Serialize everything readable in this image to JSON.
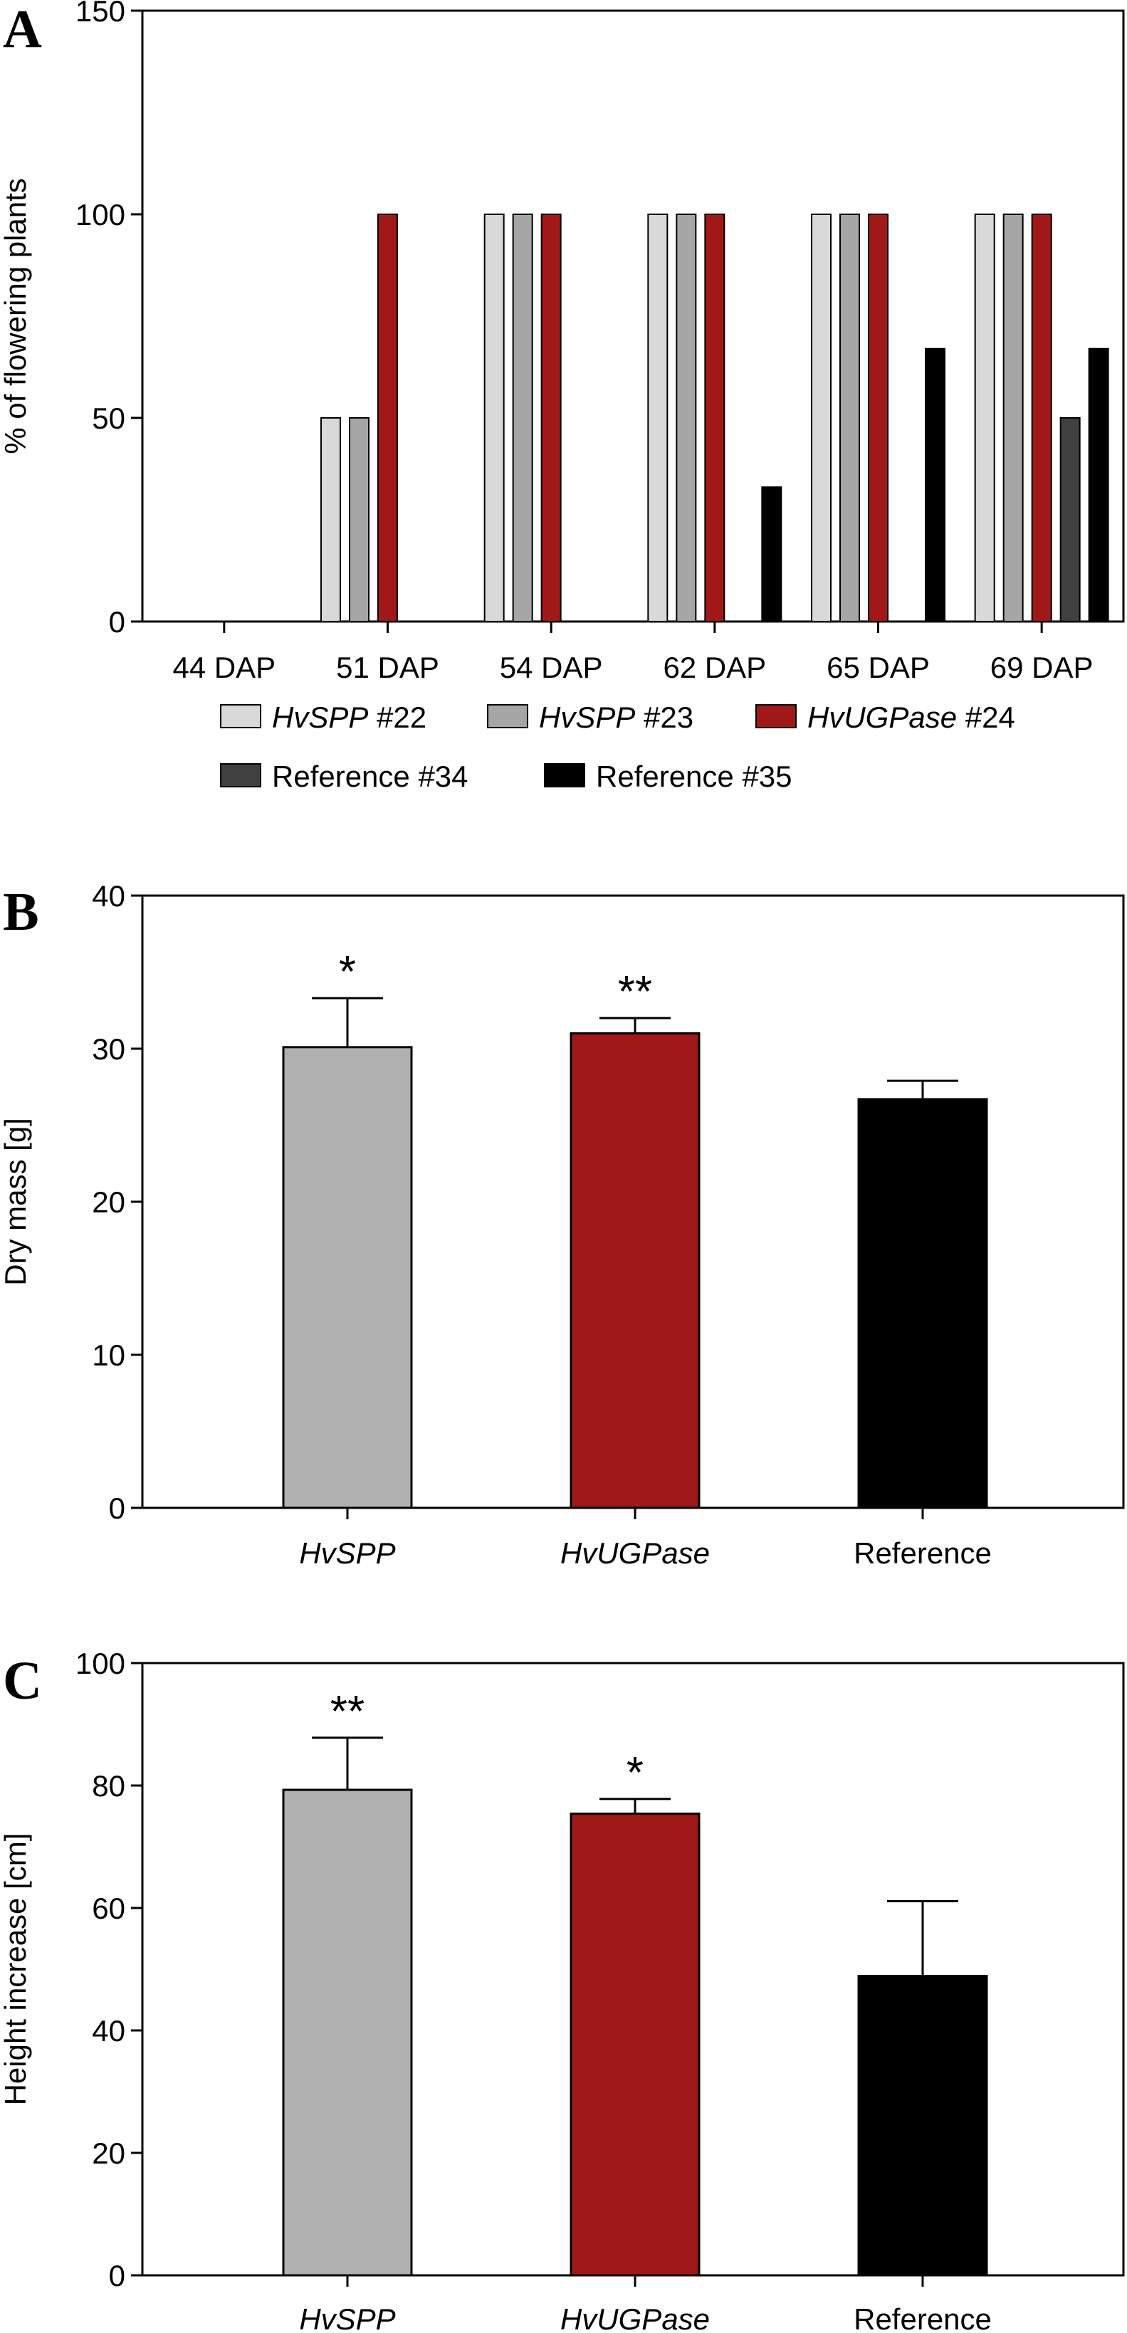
{
  "chart_data": [
    {
      "panel": "A",
      "type": "bar",
      "ylabel": "% of flowering plants",
      "ylim": [
        0,
        150
      ],
      "yticks": [
        0,
        50,
        100,
        150
      ],
      "categories": [
        "44 DAP",
        "51 DAP",
        "54 DAP",
        "62 DAP",
        "65 DAP",
        "69 DAP"
      ],
      "series": [
        {
          "name": "HvSPP #22",
          "italic": "HvSPP",
          "suffix": " #22",
          "color": "#d9d9d9",
          "values": [
            0,
            50,
            100,
            100,
            100,
            100
          ]
        },
        {
          "name": "HvSPP #23",
          "italic": "HvSPP",
          "suffix": " #23",
          "color": "#a6a6a6",
          "values": [
            0,
            50,
            100,
            100,
            100,
            100
          ]
        },
        {
          "name": "HvUGPase #24",
          "italic": "HvUGPase",
          "suffix": " #24",
          "color": "#a01818",
          "values": [
            0,
            100,
            100,
            100,
            100,
            100
          ]
        },
        {
          "name": "Reference #34",
          "italic": "",
          "suffix": "Reference #34",
          "color": "#404040",
          "values": [
            0,
            0,
            0,
            0,
            0,
            50
          ]
        },
        {
          "name": "Reference #35",
          "italic": "",
          "suffix": "Reference #35",
          "color": "#000000",
          "values": [
            0,
            0,
            0,
            33,
            67,
            67
          ]
        }
      ],
      "legend": "bottom",
      "grid": false
    },
    {
      "panel": "B",
      "type": "bar",
      "ylabel": "Dry mass [g]",
      "ylim": [
        0,
        40
      ],
      "yticks": [
        0,
        10,
        20,
        30,
        40
      ],
      "categories": [
        {
          "label": "HvSPP",
          "italic": true
        },
        {
          "label": "HvUGPase",
          "italic": true
        },
        {
          "label": "Reference",
          "italic": false
        }
      ],
      "values": [
        30.1,
        31.0,
        26.7
      ],
      "errors": [
        3.2,
        1.0,
        1.2
      ],
      "colors": [
        "#b0b0b0",
        "#a01818",
        "#000000"
      ],
      "significance": [
        "*",
        "**",
        ""
      ],
      "grid": false
    },
    {
      "panel": "C",
      "type": "bar",
      "ylabel": "Height increase [cm]",
      "ylim": [
        0,
        100
      ],
      "yticks": [
        0,
        20,
        40,
        60,
        80,
        100
      ],
      "categories": [
        {
          "label": "HvSPP",
          "italic": true
        },
        {
          "label": "HvUGPase",
          "italic": true
        },
        {
          "label": "Reference",
          "italic": false
        }
      ],
      "values": [
        79.3,
        75.4,
        48.9
      ],
      "errors": [
        8.5,
        2.4,
        12.2
      ],
      "colors": [
        "#b0b0b0",
        "#a01818",
        "#000000"
      ],
      "significance": [
        "**",
        "*",
        ""
      ],
      "grid": false
    }
  ]
}
